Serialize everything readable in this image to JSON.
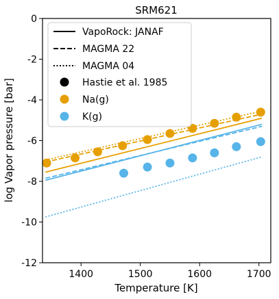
{
  "chart_data": {
    "type": "line",
    "title": "SRM621",
    "xlabel": "Temperature [K]",
    "ylabel": "log Vapor pressure [bar]",
    "xlim": [
      1335,
      1720
    ],
    "ylim": [
      -12,
      0
    ],
    "xticks": [
      1400,
      1500,
      1600,
      1700
    ],
    "yticks": [
      0,
      -2,
      -4,
      -6,
      -8,
      -10,
      -12
    ],
    "grid": false,
    "legend_placement": "top-left",
    "legend": [
      {
        "label": "VapoRock: JANAF",
        "style": "solid-line",
        "color": "#000000"
      },
      {
        "label": "MAGMA 22",
        "style": "dashed-line",
        "color": "#000000"
      },
      {
        "label": "MAGMA 04",
        "style": "dotted-line",
        "color": "#000000"
      },
      {
        "label": "Hastie et al. 1985",
        "style": "marker",
        "color": "#000000"
      },
      {
        "label": "Na(g)",
        "style": "marker",
        "color": "#E69F00"
      },
      {
        "label": "K(g)",
        "style": "marker",
        "color": "#56B4E9"
      }
    ],
    "series": [
      {
        "species": "Na(g)",
        "model": "VapoRock: JANAF",
        "style": "solid",
        "color": "#E69F00",
        "x": [
          1340,
          1705
        ],
        "y": [
          -7.55,
          -4.9
        ]
      },
      {
        "species": "Na(g)",
        "model": "MAGMA 22",
        "style": "dashed",
        "color": "#E69F00",
        "x": [
          1340,
          1705
        ],
        "y": [
          -7.05,
          -4.7
        ]
      },
      {
        "species": "Na(g)",
        "model": "MAGMA 04",
        "style": "dotted",
        "color": "#E69F00",
        "x": [
          1340,
          1705
        ],
        "y": [
          -6.95,
          -4.55
        ]
      },
      {
        "species": "K(g)",
        "model": "VapoRock: JANAF",
        "style": "solid",
        "color": "#56B4E9",
        "x": [
          1340,
          1705
        ],
        "y": [
          -7.95,
          -5.2
        ]
      },
      {
        "species": "K(g)",
        "model": "MAGMA 22",
        "style": "dashed",
        "color": "#56B4E9",
        "x": [
          1340,
          1705
        ],
        "y": [
          -7.85,
          -5.3
        ]
      },
      {
        "species": "K(g)",
        "model": "MAGMA 04",
        "style": "dotted",
        "color": "#56B4E9",
        "x": [
          1340,
          1705
        ],
        "y": [
          -9.75,
          -6.8
        ]
      }
    ],
    "points": [
      {
        "species": "Na(g)",
        "source": "Hastie et al. 1985",
        "color": "#E69F00",
        "x": [
          1342,
          1390,
          1428,
          1470,
          1512,
          1550,
          1588,
          1625,
          1662,
          1703
        ],
        "y": [
          -7.1,
          -6.85,
          -6.55,
          -6.25,
          -5.95,
          -5.65,
          -5.4,
          -5.15,
          -4.85,
          -4.6
        ]
      },
      {
        "species": "K(g)",
        "source": "Hastie et al. 1985",
        "color": "#56B4E9",
        "x": [
          1472,
          1512,
          1550,
          1588,
          1625,
          1662,
          1703
        ],
        "y": [
          -7.6,
          -7.3,
          -7.1,
          -6.85,
          -6.6,
          -6.3,
          -6.05
        ]
      }
    ]
  }
}
